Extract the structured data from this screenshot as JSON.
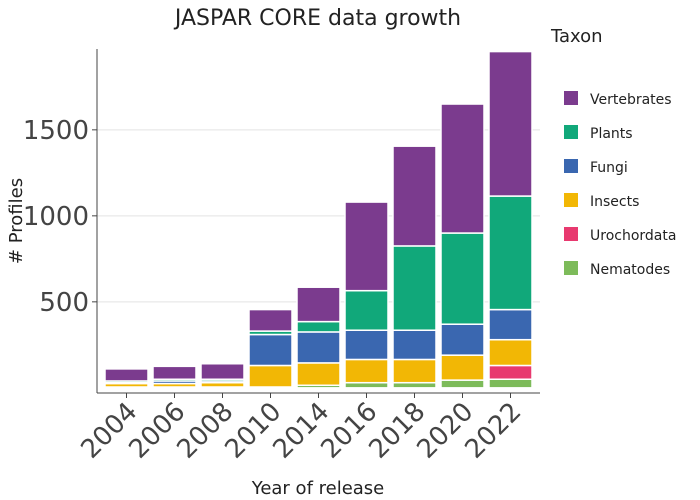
{
  "chart_data": {
    "type": "bar",
    "stacked": true,
    "title": "JASPAR CORE data growth",
    "xlabel": "Year of release",
    "ylabel": "# Profiles",
    "ylim": [
      -30,
      1970
    ],
    "yticks": [
      500,
      1000,
      1500
    ],
    "yticklabels": [
      "500",
      "1000",
      "1500"
    ],
    "grid": true,
    "legend_title": "Taxon",
    "legend_position": "right",
    "categories": [
      "2004",
      "2006",
      "2008",
      "2010",
      "2014",
      "2016",
      "2018",
      "2020",
      "2022"
    ],
    "series": [
      {
        "name": "Nematodes",
        "color": "#7dbb5a",
        "values": [
          5,
          5,
          5,
          5,
          15,
          30,
          30,
          45,
          50
        ]
      },
      {
        "name": "Urochordata",
        "color": "#e8396f",
        "values": [
          0,
          0,
          0,
          0,
          0,
          0,
          0,
          0,
          80
        ]
      },
      {
        "name": "Insects",
        "color": "#f2b705",
        "values": [
          20,
          20,
          25,
          125,
          130,
          135,
          135,
          145,
          150
        ]
      },
      {
        "name": "Fungi",
        "color": "#3a67b0",
        "values": [
          5,
          15,
          10,
          180,
          180,
          170,
          170,
          180,
          175
        ]
      },
      {
        "name": "Plants",
        "color": "#11a87a",
        "values": [
          10,
          10,
          10,
          20,
          60,
          230,
          490,
          530,
          660
        ]
      },
      {
        "name": "Vertebrates",
        "color": "#7b3b8e",
        "values": [
          70,
          75,
          90,
          125,
          200,
          515,
          580,
          750,
          840
        ]
      }
    ],
    "legend_order": [
      "Vertebrates",
      "Plants",
      "Fungi",
      "Insects",
      "Urochordata",
      "Nematodes"
    ]
  }
}
